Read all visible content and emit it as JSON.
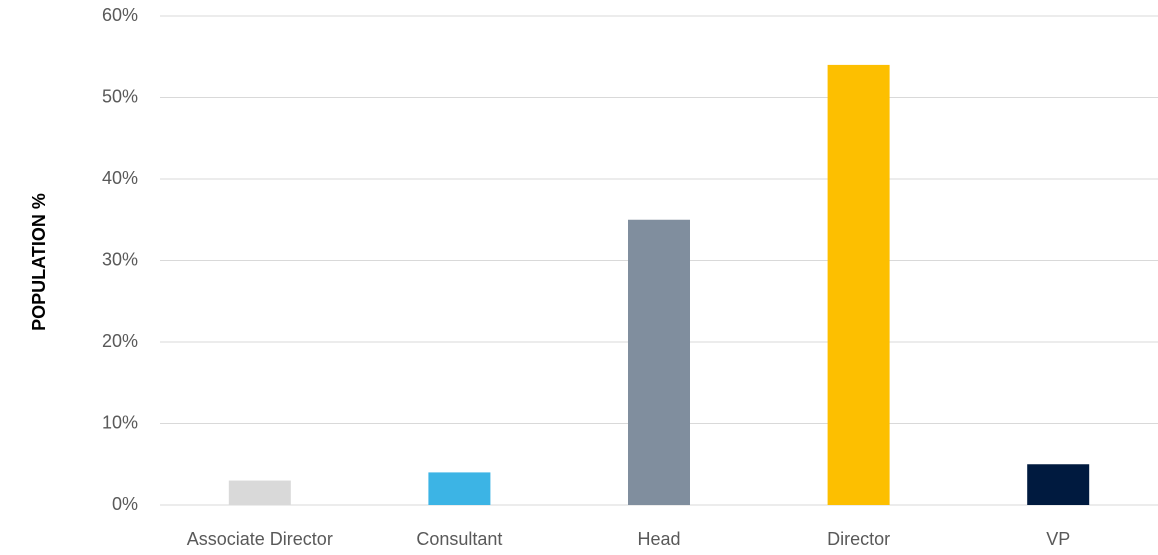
{
  "chart_data": {
    "type": "bar",
    "y_axis_label": "POPULATION %",
    "categories": [
      "Associate Director",
      "Consultant",
      "Head",
      "Director",
      "VP"
    ],
    "values": [
      3,
      4,
      35,
      54,
      5
    ],
    "colors": [
      "#d9d9d9",
      "#3cb4e5",
      "#808e9e",
      "#fdbf00",
      "#001a3f"
    ],
    "ylim": [
      0,
      60
    ],
    "yticks": [
      {
        "value": 0,
        "label": "0%"
      },
      {
        "value": 10,
        "label": "10%"
      },
      {
        "value": 20,
        "label": "20%"
      },
      {
        "value": 30,
        "label": "30%"
      },
      {
        "value": 40,
        "label": "40%"
      },
      {
        "value": 50,
        "label": "50%"
      },
      {
        "value": 60,
        "label": "60%"
      }
    ],
    "grid": true
  }
}
